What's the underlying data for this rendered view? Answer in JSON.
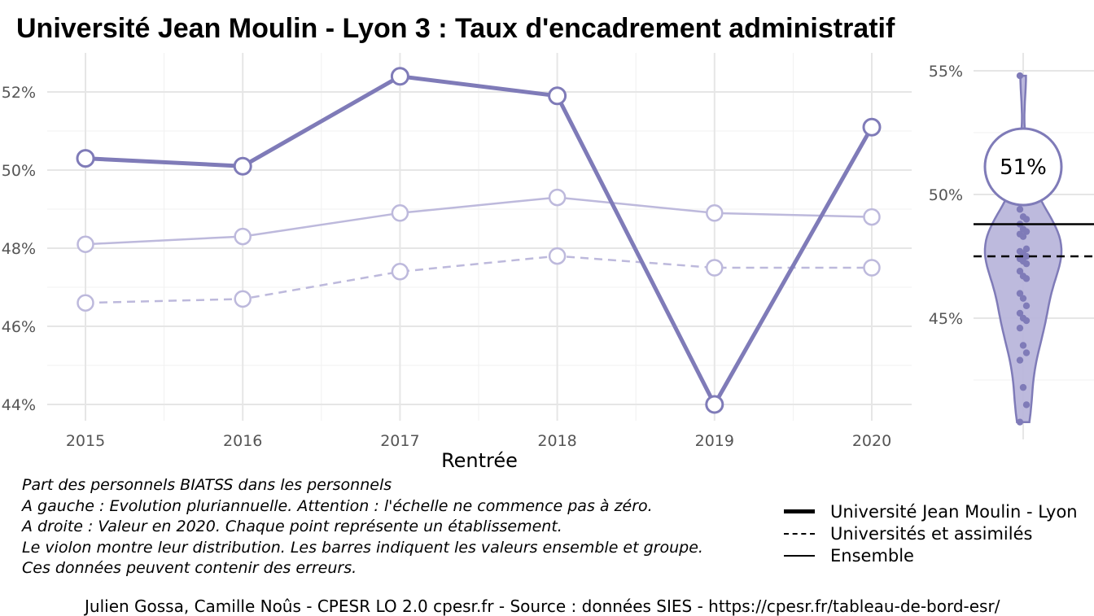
{
  "title": "Université Jean Moulin - Lyon 3  :  Taux d'encadrement administratif",
  "chart_data": [
    {
      "type": "line",
      "x": [
        2015,
        2016,
        2017,
        2018,
        2019,
        2020
      ],
      "x_tick_labels": [
        "2015",
        "2016",
        "2017",
        "2018",
        "2019",
        "2020"
      ],
      "xlabel": "Rentrée",
      "ylabel": "",
      "ylim": [
        43.6,
        53.0
      ],
      "y_ticks": [
        44,
        46,
        48,
        50,
        52
      ],
      "y_tick_labels": [
        "44%",
        "46%",
        "48%",
        "50%",
        "52%"
      ],
      "grid": true,
      "series": [
        {
          "name": "Université Jean Moulin - Lyon",
          "style": "thick",
          "color": "#7f7bb8",
          "values": [
            50.3,
            50.1,
            52.4,
            51.9,
            44.0,
            51.1
          ]
        },
        {
          "name": "Ensemble",
          "style": "thin",
          "color": "#bdb9dc",
          "values": [
            48.1,
            48.3,
            48.9,
            49.3,
            48.9,
            48.8
          ]
        },
        {
          "name": "Universités et assimilés",
          "style": "dashed",
          "color": "#bdb9dc",
          "values": [
            46.6,
            46.7,
            47.4,
            47.8,
            47.5,
            47.5
          ]
        }
      ]
    },
    {
      "type": "violin",
      "ylim": [
        40.8,
        56.0
      ],
      "y_ticks": [
        45,
        50,
        55
      ],
      "y_tick_labels": [
        "45%",
        "50%",
        "55%"
      ],
      "value_label": "51%",
      "highlight_value": 51.1,
      "ensemble_value": 48.8,
      "group_value": 47.5,
      "points": [
        54.8,
        51.2,
        50.6,
        49.4,
        49.1,
        49.0,
        48.8,
        48.6,
        48.5,
        48.4,
        48.3,
        47.8,
        47.7,
        47.6,
        47.5,
        47.4,
        47.3,
        47.2,
        46.9,
        46.7,
        46.6,
        46.0,
        45.8,
        45.5,
        45.2,
        45.0,
        44.9,
        44.6,
        43.9,
        43.6,
        43.3,
        42.2,
        41.5,
        40.8
      ],
      "colors": {
        "fill": "#b9b6db",
        "stroke": "#7f7bb8",
        "point": "#7f7bb8"
      }
    }
  ],
  "caption": [
    "Part des personnels BIATSS dans les personnels",
    "A gauche : Evolution pluriannuelle. Attention : l'échelle ne commence pas à zéro.",
    "A droite : Valeur en 2020. Chaque point représente un établissement.",
    "Le violon montre leur distribution. Les barres indiquent les valeurs ensemble et groupe.",
    "Ces données peuvent contenir des erreurs."
  ],
  "legend": [
    {
      "label": "Université Jean Moulin - Lyon",
      "key": "thick"
    },
    {
      "label": "Universités et assimilés",
      "key": "dashed"
    },
    {
      "label": "Ensemble",
      "key": "thin"
    }
  ],
  "footer": "Julien Gossa, Camille Noûs - CPESR LO 2.0 cpesr.fr - Source : données SIES - https://cpesr.fr/tableau-de-bord-esr/"
}
